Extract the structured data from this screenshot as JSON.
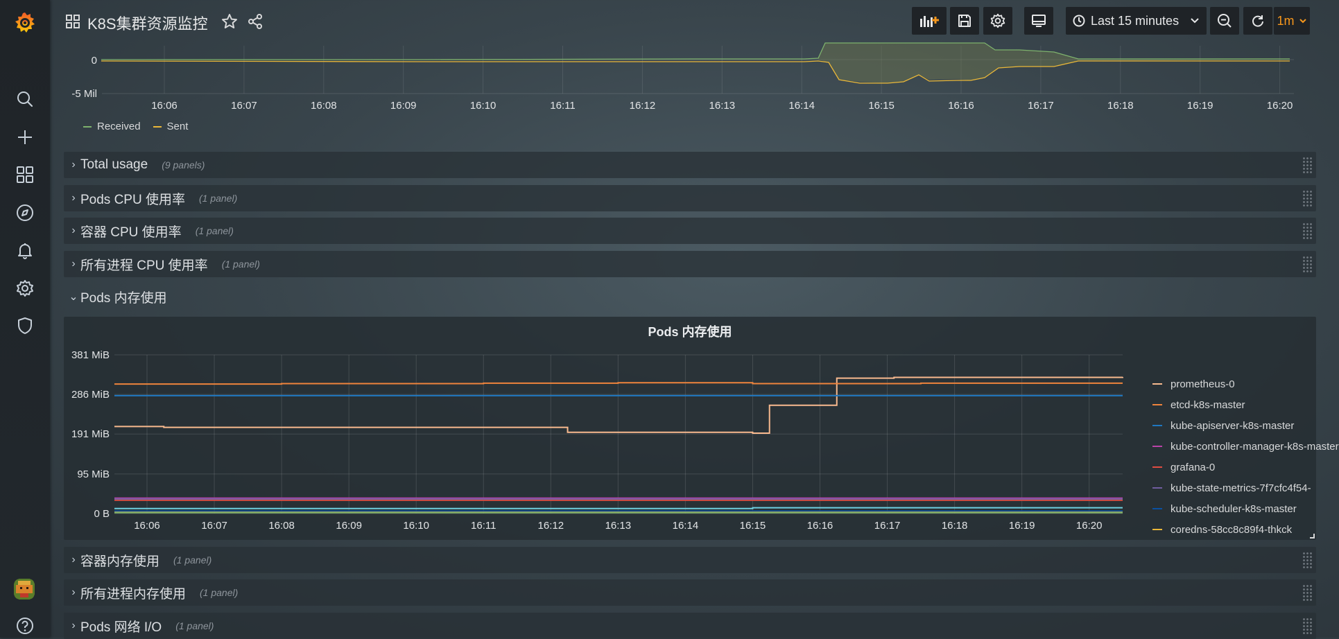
{
  "header": {
    "title": "K8S集群资源监控",
    "time_range": "Last 15 minutes",
    "refresh_interval": "1m"
  },
  "colors": {
    "received": "#7eb26d",
    "sent": "#eab839",
    "orange": "#f7971c",
    "background": "#3a464d"
  },
  "network_chart": {
    "y_ticks": [
      "0",
      "-5 Mil"
    ],
    "x_ticks": [
      "16:06",
      "16:07",
      "16:08",
      "16:09",
      "16:10",
      "16:11",
      "16:12",
      "16:13",
      "16:14",
      "16:15",
      "16:16",
      "16:17",
      "16:18",
      "16:19",
      "16:20"
    ],
    "legend": [
      {
        "name": "Received",
        "color": "#7eb26d"
      },
      {
        "name": "Sent",
        "color": "#eab839"
      }
    ]
  },
  "rows": [
    {
      "title": "Total usage",
      "count": "(9 panels)",
      "collapsed": true
    },
    {
      "title": "Pods CPU 使用率",
      "count": "(1 panel)",
      "collapsed": true
    },
    {
      "title": "容器 CPU 使用率",
      "count": "(1 panel)",
      "collapsed": true
    },
    {
      "title": "所有进程 CPU 使用率",
      "count": "(1 panel)",
      "collapsed": true
    },
    {
      "title": "Pods 内存使用",
      "count": "",
      "collapsed": false
    },
    {
      "title": "容器内存使用",
      "count": "(1 panel)",
      "collapsed": true
    },
    {
      "title": "所有进程内存使用",
      "count": "(1 panel)",
      "collapsed": true
    },
    {
      "title": "Pods 网络 I/O",
      "count": "(1 panel)",
      "collapsed": true
    }
  ],
  "chart_data": {
    "type": "line",
    "title": "Pods 内存使用",
    "ylabel": "",
    "xlabel": "",
    "x": [
      "16:06",
      "16:07",
      "16:08",
      "16:09",
      "16:10",
      "16:11",
      "16:12",
      "16:13",
      "16:14",
      "16:15",
      "16:16",
      "16:17",
      "16:18",
      "16:19",
      "16:20"
    ],
    "y_ticks": [
      "381 MiB",
      "286 MiB",
      "191 MiB",
      "95 MiB",
      "0 B"
    ],
    "ylim": [
      0,
      381
    ],
    "grid": true,
    "legend_position": "right",
    "series": [
      {
        "name": "prometheus-0",
        "color": "#f9ba8f",
        "points": [
          [
            5.5,
            209
          ],
          [
            6.25,
            207
          ],
          [
            12.2,
            207
          ],
          [
            12.25,
            195
          ],
          [
            13.5,
            195
          ],
          [
            15,
            193
          ],
          [
            15.25,
            260
          ],
          [
            15.5,
            260
          ],
          [
            16.25,
            325
          ],
          [
            17.1,
            327
          ],
          [
            20.5,
            328
          ]
        ]
      },
      {
        "name": "etcd-k8s-master",
        "color": "#ef843c",
        "points": [
          [
            5.5,
            311
          ],
          [
            8,
            312
          ],
          [
            11,
            313
          ],
          [
            13,
            314
          ],
          [
            15,
            312
          ],
          [
            17.5,
            313
          ],
          [
            20.5,
            313
          ]
        ]
      },
      {
        "name": "kube-apiserver-k8s-master",
        "color": "#1f78c1",
        "points": [
          [
            5.5,
            283
          ],
          [
            20.5,
            283
          ]
        ]
      },
      {
        "name": "kube-controller-manager-k8s-master",
        "color": "#ba43a9",
        "points": [
          [
            5.5,
            37
          ],
          [
            20.5,
            37
          ]
        ]
      },
      {
        "name": "grafana-0",
        "color": "#e24d42",
        "points": [
          [
            5.5,
            32
          ],
          [
            20.5,
            32
          ]
        ]
      },
      {
        "name": "kube-state-metrics-7f7cfc4f54-",
        "color": "#705da0",
        "points": [
          [
            5.5,
            35
          ],
          [
            20.5,
            35
          ]
        ]
      },
      {
        "name": "kube-scheduler-k8s-master",
        "color": "#0a50a1",
        "points": [
          [
            5.5,
            6
          ],
          [
            20.5,
            6
          ]
        ]
      },
      {
        "name": "coredns-58cc8c89f4-thkck",
        "color": "#eab839",
        "points": [
          [
            5.5,
            3
          ],
          [
            20.5,
            3
          ]
        ]
      },
      {
        "name": "",
        "color": "#6ed0e0",
        "points": [
          [
            5.5,
            12
          ],
          [
            15,
            12
          ],
          [
            15,
            14
          ],
          [
            20.5,
            14
          ]
        ]
      },
      {
        "name": "",
        "color": "#7eb26d",
        "points": [
          [
            5.5,
            2
          ],
          [
            20.5,
            2
          ]
        ]
      }
    ]
  }
}
